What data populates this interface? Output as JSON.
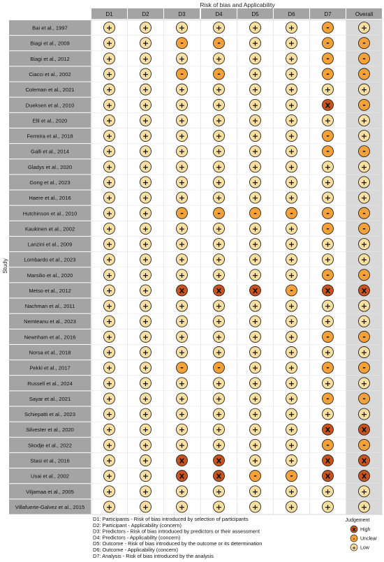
{
  "chart_data": {
    "type": "table",
    "title": "Risk of bias and Applicability",
    "ylabel": "Study",
    "domains": [
      "D1",
      "D2",
      "D3",
      "D4",
      "D5",
      "D6",
      "D7"
    ],
    "overall_label": "Overall",
    "studies": [
      "Bai et al., 1997",
      "Biagi et al., 2009",
      "Biagi et al., 2012",
      "Ciacci et al., 2002",
      "Coleman et al., 2021",
      "Dueksen et al., 2010",
      "Elli et al., 2020",
      "Ferreira et al., 2018",
      "Galli et al., 2014",
      "Gladys et al., 2020",
      "Gong et al., 2023",
      "Haere et al., 2016",
      "Hutchinson et al., 2010",
      "Kaukinen et al., 2002",
      "Lanzini et al., 2009",
      "Lombardo et al., 2023",
      "Marsilio et al., 2020",
      "Metso et al., 2012",
      "Nachman et al., 2011",
      "Nemteanu et al., 2023",
      "Newnham et al., 2016",
      "Norsa et al., 2018",
      "Pekki et al., 2017",
      "Russell et al., 2024",
      "Sayar et al., 2021",
      "Schiepatti et al., 2023",
      "Silvester et al., 2020",
      "Skodje et al., 2022",
      "Stasi et al., 2016",
      "Usai et al., 2002",
      "Viljamaa et al., 2005",
      "Villafuerte-Galvez et al., 2015"
    ],
    "judgements": [
      [
        "low",
        "low",
        "low",
        "low",
        "low",
        "low",
        "unclear",
        "low"
      ],
      [
        "low",
        "low",
        "unclear",
        "unclear",
        "low",
        "low",
        "unclear",
        "unclear"
      ],
      [
        "low",
        "low",
        "low",
        "low",
        "low",
        "low",
        "unclear",
        "unclear"
      ],
      [
        "low",
        "low",
        "unclear",
        "unclear",
        "low",
        "low",
        "unclear",
        "unclear"
      ],
      [
        "low",
        "low",
        "low",
        "low",
        "low",
        "low",
        "low",
        "low"
      ],
      [
        "low",
        "low",
        "low",
        "low",
        "low",
        "low",
        "high",
        "unclear"
      ],
      [
        "low",
        "low",
        "low",
        "low",
        "low",
        "low",
        "low",
        "low"
      ],
      [
        "low",
        "low",
        "low",
        "low",
        "low",
        "low",
        "unclear",
        "low"
      ],
      [
        "low",
        "low",
        "low",
        "low",
        "low",
        "low",
        "unclear",
        "unclear"
      ],
      [
        "low",
        "low",
        "low",
        "low",
        "low",
        "low",
        "low",
        "low"
      ],
      [
        "low",
        "low",
        "low",
        "low",
        "low",
        "low",
        "low",
        "low"
      ],
      [
        "low",
        "low",
        "low",
        "low",
        "low",
        "low",
        "low",
        "low"
      ],
      [
        "low",
        "low",
        "unclear",
        "unclear",
        "unclear",
        "unclear",
        "unclear",
        "unclear"
      ],
      [
        "low",
        "low",
        "low",
        "low",
        "low",
        "low",
        "unclear",
        "unclear"
      ],
      [
        "low",
        "low",
        "low",
        "low",
        "low",
        "low",
        "low",
        "low"
      ],
      [
        "low",
        "low",
        "low",
        "low",
        "low",
        "low",
        "low",
        "low"
      ],
      [
        "low",
        "low",
        "low",
        "low",
        "low",
        "low",
        "unclear",
        "unclear"
      ],
      [
        "low",
        "low",
        "high",
        "high",
        "high",
        "unclear",
        "high",
        "high"
      ],
      [
        "low",
        "low",
        "low",
        "low",
        "low",
        "low",
        "low",
        "low"
      ],
      [
        "low",
        "low",
        "low",
        "low",
        "low",
        "low",
        "low",
        "low"
      ],
      [
        "low",
        "low",
        "low",
        "low",
        "low",
        "low",
        "unclear",
        "unclear"
      ],
      [
        "low",
        "low",
        "low",
        "low",
        "low",
        "low",
        "low",
        "low"
      ],
      [
        "low",
        "low",
        "unclear",
        "unclear",
        "low",
        "low",
        "unclear",
        "unclear"
      ],
      [
        "low",
        "low",
        "low",
        "low",
        "low",
        "low",
        "low",
        "low"
      ],
      [
        "low",
        "low",
        "low",
        "low",
        "low",
        "low",
        "unclear",
        "unclear"
      ],
      [
        "low",
        "low",
        "low",
        "low",
        "low",
        "low",
        "low",
        "low"
      ],
      [
        "low",
        "low",
        "low",
        "low",
        "low",
        "low",
        "high",
        "high"
      ],
      [
        "low",
        "low",
        "low",
        "low",
        "low",
        "low",
        "unclear",
        "unclear"
      ],
      [
        "low",
        "low",
        "high",
        "high",
        "low",
        "low",
        "high",
        "high"
      ],
      [
        "low",
        "low",
        "high",
        "high",
        "unclear",
        "unclear",
        "high",
        "high"
      ],
      [
        "low",
        "low",
        "low",
        "low",
        "low",
        "low",
        "low",
        "low"
      ],
      [
        "low",
        "low",
        "low",
        "low",
        "low",
        "low",
        "low",
        "low"
      ]
    ],
    "symbols": {
      "high": "X",
      "unclear": "-",
      "low": "+"
    },
    "colors": {
      "high": "#c9531e",
      "unclear": "#f4a13a",
      "low": "#f9dfa0",
      "header_fill": "#a4a4a4",
      "overall_fill": "#d9d9d9",
      "grid": "#ffffff"
    },
    "domain_descriptions": [
      "D1: Participants - Risk of bias introduced by selection of participants",
      "D2: Participant - Applicability (concern)",
      "D3: Predictors - Risk of bias introduced by predictors or their assessment",
      "D4: Predictors - Applicability (concern)",
      "D5: Outcome - Risk of bias introduced by the outcome or its determination",
      "D6: Outcome - Applicability (concern)",
      "D7: Analysis - Risk of bias introduced by the analysis"
    ],
    "legend": {
      "title": "Judgement",
      "placement": "bottom-right",
      "items": [
        {
          "level": "high",
          "label": "High"
        },
        {
          "level": "unclear",
          "label": "Unclear"
        },
        {
          "level": "low",
          "label": "Low"
        }
      ]
    }
  }
}
